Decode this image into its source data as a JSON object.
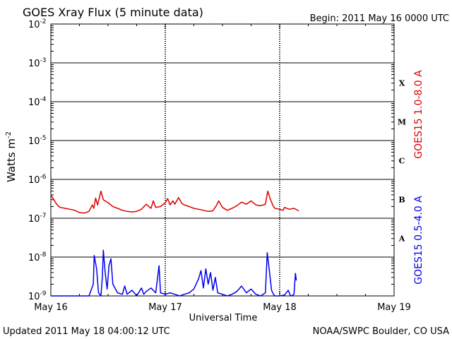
{
  "chart_data": {
    "type": "line",
    "title": "GOES Xray Flux (5 minute data)",
    "begin_label": "Begin:  2011 May 16 0000 UTC",
    "xlabel": "Universal Time",
    "ylabel": "Watts m",
    "ylabel_superscript": "-2",
    "y_scale": "log",
    "ylim": [
      1e-09,
      0.01
    ],
    "y_tick_bases": [
      "10",
      "10",
      "10",
      "10",
      "10",
      "10",
      "10",
      "10"
    ],
    "y_tick_exponents": [
      "-9",
      "-8",
      "-7",
      "-6",
      "-5",
      "-4",
      "-3",
      "-2"
    ],
    "x_tick_labels": [
      "May 16",
      "May 17",
      "May 18",
      "May 19"
    ],
    "xlim": [
      0,
      72
    ],
    "x_units": "hours since 2011 May 16 0000 UTC",
    "flare_classes": [
      "X",
      "M",
      "C",
      "B",
      "A"
    ],
    "grid": true,
    "footer_left": "Updated 2011 May 18 04:00:12 UTC",
    "footer_right": "NOAA/SWPC Boulder, CO USA",
    "series": [
      {
        "name": "GOES15 1.0-8.0 A",
        "color": "#dd0000",
        "x": [
          0,
          0.5,
          1,
          1.5,
          2,
          3,
          4,
          5,
          6,
          7,
          8,
          8.7,
          9,
          9.4,
          9.8,
          10.5,
          11,
          12,
          13,
          14,
          15,
          16,
          17,
          18,
          19,
          20,
          21,
          21.5,
          22,
          23,
          24,
          24.5,
          25,
          25.6,
          26,
          26.8,
          27.5,
          28,
          29,
          30,
          31,
          32,
          33,
          34,
          34.7,
          35.2,
          36,
          37,
          38,
          39,
          40,
          41,
          42,
          43,
          44,
          45,
          45.5,
          46,
          46.6,
          47,
          48,
          48.7,
          49,
          50,
          51,
          52
        ],
        "values": [
          4e-07,
          3.2e-07,
          2.5e-07,
          2.1e-07,
          1.9e-07,
          1.8e-07,
          1.7e-07,
          1.6e-07,
          1.4e-07,
          1.35e-07,
          1.5e-07,
          2.2e-07,
          1.8e-07,
          3.3e-07,
          2.2e-07,
          5e-07,
          3e-07,
          2.5e-07,
          2e-07,
          1.8e-07,
          1.6e-07,
          1.5e-07,
          1.45e-07,
          1.5e-07,
          1.7e-07,
          2.3e-07,
          1.8e-07,
          2.8e-07,
          1.9e-07,
          2e-07,
          2.5e-07,
          3.2e-07,
          2.2e-07,
          2.8e-07,
          2.3e-07,
          3.4e-07,
          2.4e-07,
          2.2e-07,
          2e-07,
          1.8e-07,
          1.7e-07,
          1.6e-07,
          1.5e-07,
          1.55e-07,
          2.1e-07,
          2.8e-07,
          1.9e-07,
          1.6e-07,
          1.8e-07,
          2.1e-07,
          2.6e-07,
          2.3e-07,
          2.8e-07,
          2.2e-07,
          2.1e-07,
          2.3e-07,
          5e-07,
          3.2e-07,
          2.1e-07,
          1.8e-07,
          1.7e-07,
          1.6e-07,
          1.9e-07,
          1.7e-07,
          1.8e-07,
          1.55e-07
        ]
      },
      {
        "name": "GOES15 0.5-4.0 A",
        "color": "#0000ee",
        "x": [
          0,
          2,
          4,
          6,
          8,
          8.9,
          9.1,
          9.6,
          10,
          10.5,
          10.8,
          11,
          11.4,
          11.8,
          12.2,
          12.6,
          13,
          14,
          15,
          15.5,
          16,
          17,
          17.5,
          18,
          19,
          19.5,
          20,
          21,
          22,
          22.7,
          23,
          24,
          25,
          26,
          27,
          28,
          29,
          30,
          31,
          31.5,
          32,
          32.5,
          33,
          33.5,
          34,
          34.5,
          35,
          36,
          37,
          38,
          39,
          40,
          41,
          42,
          43,
          44,
          45,
          45.4,
          45.8,
          46.3,
          46.7,
          47,
          48,
          49,
          49.8,
          50.2,
          50.5,
          51,
          51.3,
          51.5
        ],
        "values": [
          1e-09,
          1e-09,
          1e-09,
          1e-09,
          1e-09,
          2e-09,
          1.1e-08,
          5e-09,
          1.2e-09,
          1e-09,
          3e-09,
          1.5e-08,
          4e-09,
          1.5e-09,
          6e-09,
          9e-09,
          2e-09,
          1.2e-09,
          1.1e-09,
          1.8e-09,
          1.1e-09,
          1.4e-09,
          1.2e-09,
          1e-09,
          1.6e-09,
          1.1e-09,
          1.3e-09,
          1.6e-09,
          1.2e-09,
          6e-09,
          1.2e-09,
          1.1e-09,
          1.2e-09,
          1.1e-09,
          1e-09,
          1.1e-09,
          1.2e-09,
          1.5e-09,
          2.8e-09,
          4.5e-09,
          1.6e-09,
          5e-09,
          2e-09,
          4e-09,
          1.4e-09,
          3e-09,
          1.2e-09,
          1.1e-09,
          1e-09,
          1.1e-09,
          1.3e-09,
          1.8e-09,
          1.2e-09,
          1.5e-09,
          1.1e-09,
          1e-09,
          1.2e-09,
          1.3e-08,
          5e-09,
          1.4e-09,
          1.1e-09,
          1e-09,
          1e-09,
          1.05e-09,
          1.4e-09,
          1.05e-09,
          1e-09,
          1.1e-09,
          3.8e-09,
          2.5e-09
        ]
      }
    ]
  }
}
